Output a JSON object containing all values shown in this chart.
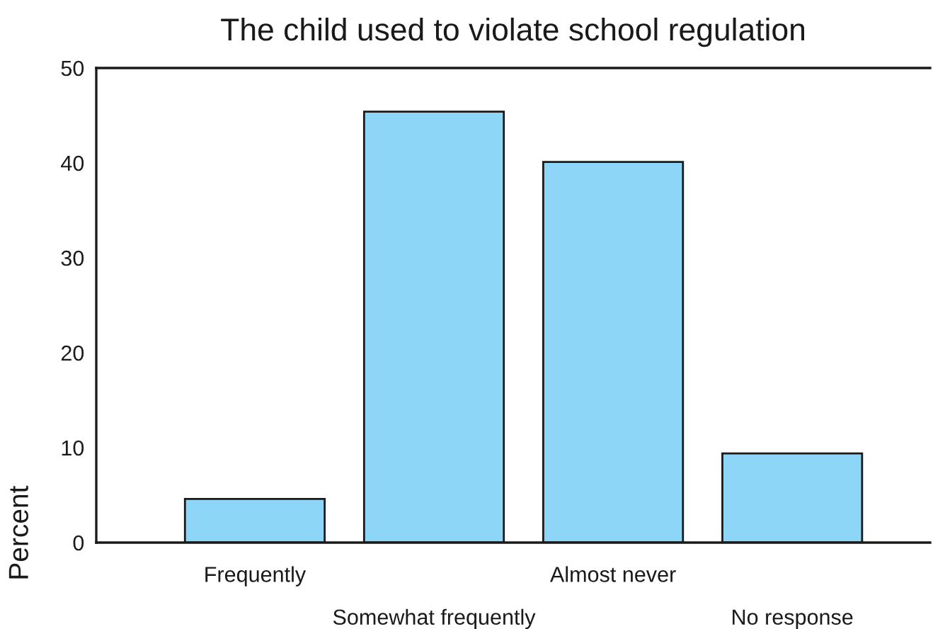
{
  "chart_data": {
    "type": "bar",
    "title": "The child used to violate school regulation",
    "ylabel": "Percent",
    "categories": [
      "Frequently",
      "Somewhat frequently",
      "Almost never",
      "No response"
    ],
    "values": [
      4.6,
      45.4,
      40.1,
      9.4
    ],
    "color": "#8dd6f7",
    "ylim": [
      0,
      50
    ],
    "yticks": [
      0,
      10,
      20,
      30,
      40,
      50
    ],
    "grid": false,
    "legend": false
  }
}
